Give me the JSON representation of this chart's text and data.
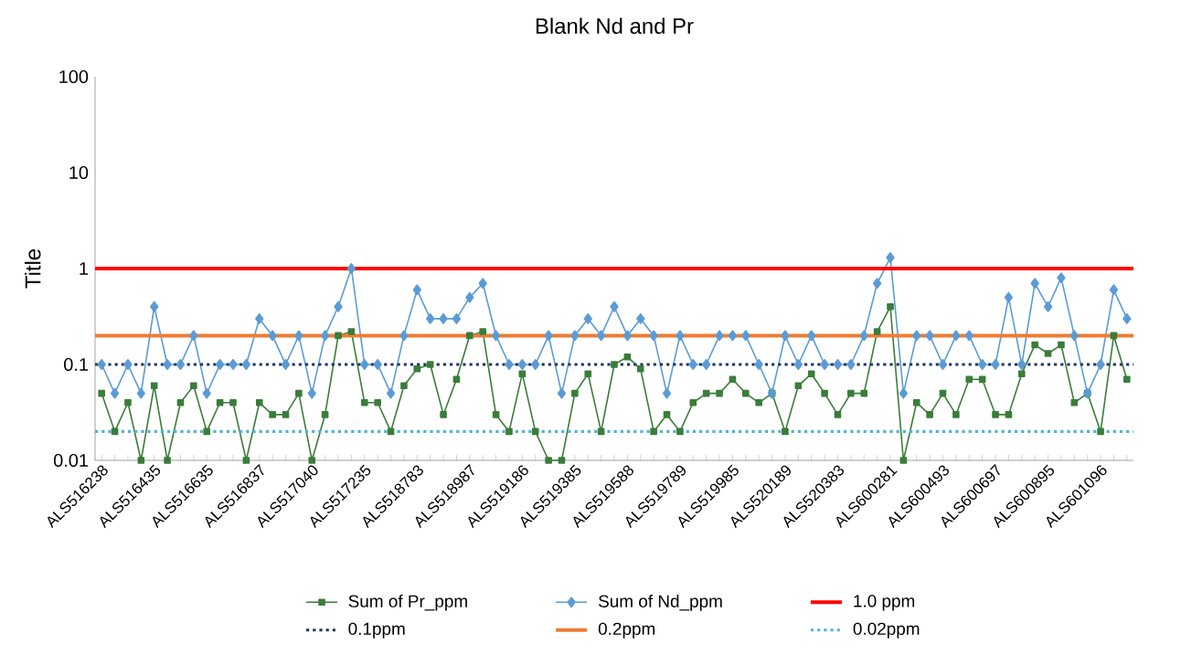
{
  "chart_data": {
    "type": "line",
    "title": "Blank Nd and Pr",
    "ylabel": "Title",
    "log": "y",
    "ylim": [
      0.01,
      100
    ],
    "yticks": [
      0.01,
      0.1,
      1,
      10,
      100
    ],
    "grid": false,
    "legend": "bottom",
    "categories": [
      "ALS516238",
      null,
      null,
      null,
      "ALS516435",
      null,
      null,
      null,
      "ALS516635",
      null,
      null,
      null,
      "ALS516837",
      null,
      null,
      null,
      "ALS517040",
      null,
      null,
      null,
      "ALS517235",
      null,
      null,
      null,
      "ALS518783",
      null,
      null,
      null,
      "ALS518987",
      null,
      null,
      null,
      "ALS519186",
      null,
      null,
      null,
      "ALS519385",
      null,
      null,
      null,
      "ALS519588",
      null,
      null,
      null,
      "ALS519789",
      null,
      null,
      null,
      "ALS519985",
      null,
      null,
      null,
      "ALS520189",
      null,
      null,
      null,
      "ALS520383",
      null,
      null,
      null,
      "ALS600281",
      null,
      null,
      null,
      "ALS600493",
      null,
      null,
      null,
      "ALS600697",
      null,
      null,
      null,
      "ALS600895",
      null,
      null,
      null,
      "ALS601096",
      null,
      null
    ],
    "series": [
      {
        "name": "Sum of Pr_ppm",
        "color": "#3a7d3a",
        "marker": "square",
        "values": [
          0.05,
          0.02,
          0.04,
          0.01,
          0.06,
          0.01,
          0.04,
          0.06,
          0.02,
          0.04,
          0.04,
          0.01,
          0.04,
          0.03,
          0.03,
          0.05,
          0.01,
          0.03,
          0.2,
          0.22,
          0.04,
          0.04,
          0.02,
          0.06,
          0.09,
          0.1,
          0.03,
          0.07,
          0.2,
          0.22,
          0.03,
          0.02,
          0.08,
          0.02,
          0.01,
          0.01,
          0.05,
          0.08,
          0.02,
          0.1,
          0.12,
          0.09,
          0.02,
          0.03,
          0.02,
          0.04,
          0.05,
          0.05,
          0.07,
          0.05,
          0.04,
          0.05,
          0.02,
          0.06,
          0.08,
          0.05,
          0.03,
          0.05,
          0.05,
          0.22,
          0.4,
          0.01,
          0.04,
          0.03,
          0.05,
          0.03,
          0.07,
          0.07,
          0.03,
          0.03,
          0.08,
          0.16,
          0.13,
          0.16,
          0.04,
          0.05,
          0.02,
          0.2,
          0.07
        ]
      },
      {
        "name": "Sum of Nd_ppm",
        "color": "#5b9bd5",
        "marker": "diamond",
        "values": [
          0.1,
          0.05,
          0.1,
          0.05,
          0.4,
          0.1,
          0.1,
          0.2,
          0.05,
          0.1,
          0.1,
          0.1,
          0.3,
          0.2,
          0.1,
          0.2,
          0.05,
          0.2,
          0.4,
          1.0,
          0.1,
          0.1,
          0.05,
          0.2,
          0.6,
          0.3,
          0.3,
          0.3,
          0.5,
          0.7,
          0.2,
          0.1,
          0.1,
          0.1,
          0.2,
          0.05,
          0.2,
          0.3,
          0.2,
          0.4,
          0.2,
          0.3,
          0.2,
          0.05,
          0.2,
          0.1,
          0.1,
          0.2,
          0.2,
          0.2,
          0.1,
          0.05,
          0.2,
          0.1,
          0.2,
          0.1,
          0.1,
          0.1,
          0.2,
          0.7,
          1.3,
          0.05,
          0.2,
          0.2,
          0.1,
          0.2,
          0.2,
          0.1,
          0.1,
          0.5,
          0.1,
          0.7,
          0.4,
          0.8,
          0.2,
          0.05,
          0.1,
          0.6,
          0.3
        ]
      }
    ],
    "ref_lines": [
      {
        "axis": "y",
        "value": 1,
        "label": "1.0 ppm",
        "color": "#ff0000",
        "line_style": "solid"
      },
      {
        "axis": "y",
        "value": 0.1,
        "label": "0.1ppm",
        "color": "#1f3864",
        "line_style": "dotted"
      },
      {
        "axis": "y",
        "value": 0.2,
        "label": "0.2ppm",
        "color": "#ed7d31",
        "line_style": "solid"
      },
      {
        "axis": "y",
        "value": 0.02,
        "label": "0.02ppm",
        "color": "#4fb3d9",
        "line_style": "dotted"
      }
    ]
  }
}
